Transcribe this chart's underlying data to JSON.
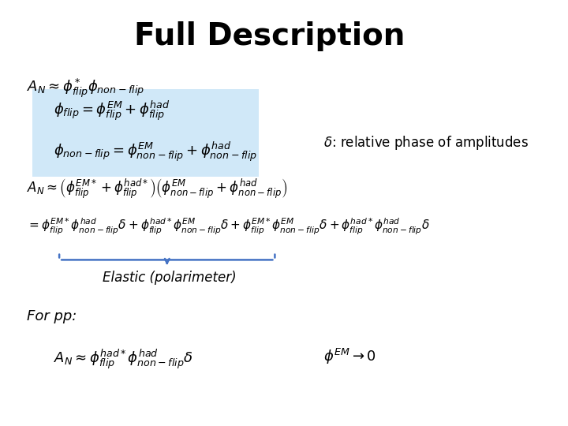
{
  "title": "Full Description",
  "title_fontsize": 28,
  "title_fontweight": "bold",
  "background_color": "#ffffff",
  "box_color": "#d0e8f8",
  "text_color": "#000000",
  "blue_color": "#4472c4",
  "equations": {
    "eq1": "$A_N \\approx \\phi^*_{flip}\\phi_{non-flip}$",
    "eq2_box1": "$\\phi_{flip} = \\phi^{EM}_{flip} + \\phi^{had}_{flip}$",
    "eq2_box2": "$\\phi_{non-flip} = \\phi^{EM}_{non-flip} + \\phi^{had}_{non-flip}$",
    "eq3": "$A_N \\approx \\left(\\phi^{EM*}_{flip} + \\phi^{had*}_{flip}\\right)\\left(\\phi^{EM}_{non-flip} + \\phi^{had}_{non-flip}\\right)$",
    "eq4": "$= \\phi^{EM*}_{flip}\\phi^{had}_{non-flip}\\delta + \\phi^{had*}_{flip}\\phi^{EM}_{non-flip}\\delta + \\phi^{EM*}_{flip}\\phi^{EM}_{non-flip}\\delta + \\phi^{had*}_{flip}\\phi^{had}_{non-flip}\\delta$",
    "delta_note": "$\\delta$: relative phase of amplitudes",
    "elastic_label": "Elastic (polarimeter)",
    "for_pp": "For pp:",
    "eq5a": "$A_N \\approx \\phi^{had*}_{flip}\\phi^{had}_{non-flip}\\delta$",
    "eq5b": "$\\phi^{EM} \\rightarrow 0$"
  }
}
